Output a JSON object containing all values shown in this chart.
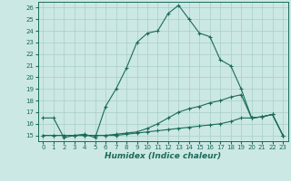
{
  "title": "",
  "xlabel": "Humidex (Indice chaleur)",
  "x": [
    0,
    1,
    2,
    3,
    4,
    5,
    6,
    7,
    8,
    9,
    10,
    11,
    12,
    13,
    14,
    15,
    16,
    17,
    18,
    19,
    20,
    21,
    22,
    23
  ],
  "line1": [
    16.5,
    16.5,
    14.8,
    15.0,
    15.1,
    14.8,
    17.5,
    19.0,
    20.8,
    23.0,
    23.8,
    24.0,
    25.5,
    26.2,
    25.0,
    23.8,
    23.5,
    21.5,
    21.0,
    19.0,
    16.5,
    16.6,
    16.8,
    15.0
  ],
  "line2": [
    15.0,
    15.0,
    15.0,
    15.0,
    15.0,
    15.0,
    15.0,
    15.0,
    15.1,
    15.2,
    15.3,
    15.4,
    15.5,
    15.6,
    15.7,
    15.8,
    15.9,
    16.0,
    16.2,
    16.5,
    16.5,
    16.6,
    16.8,
    15.0
  ],
  "line3": [
    15.0,
    15.0,
    15.0,
    15.0,
    15.0,
    15.0,
    15.0,
    15.1,
    15.2,
    15.3,
    15.6,
    16.0,
    16.5,
    17.0,
    17.3,
    17.5,
    17.8,
    18.0,
    18.3,
    18.5,
    16.5,
    16.6,
    16.8,
    15.0
  ],
  "line_color": "#1a6b5a",
  "bg_color": "#cce8e4",
  "grid_color": "#a8cdc8",
  "ylim": [
    14.5,
    26.5
  ],
  "xlim": [
    -0.5,
    23.5
  ],
  "yticks": [
    15,
    16,
    17,
    18,
    19,
    20,
    21,
    22,
    23,
    24,
    25,
    26
  ],
  "xticks": [
    0,
    1,
    2,
    3,
    4,
    5,
    6,
    7,
    8,
    9,
    10,
    11,
    12,
    13,
    14,
    15,
    16,
    17,
    18,
    19,
    20,
    21,
    22,
    23
  ],
  "xlabel_fontsize": 6.5,
  "tick_fontsize": 5.0,
  "lw": 0.8,
  "marker_size": 3.5
}
